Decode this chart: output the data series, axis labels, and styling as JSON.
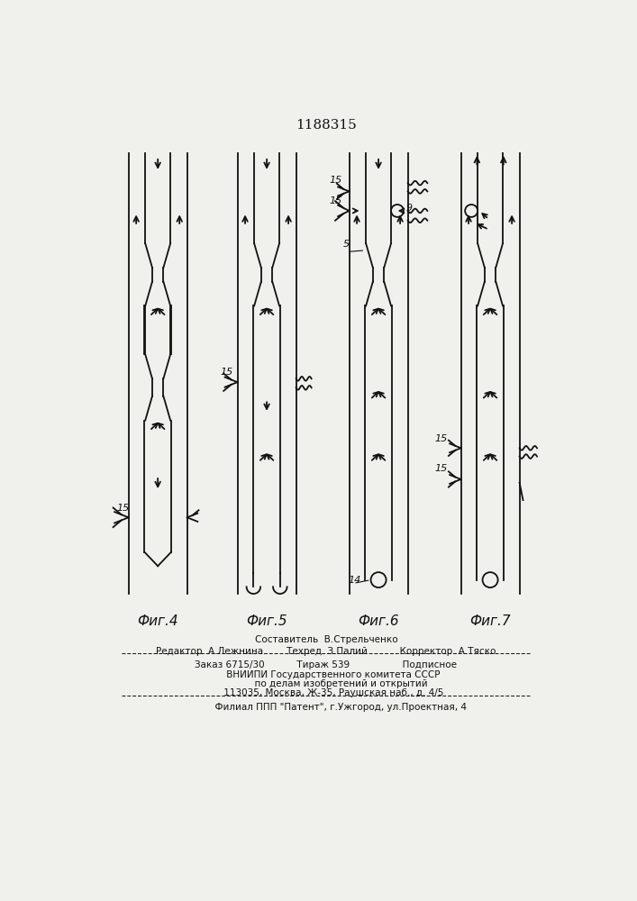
{
  "title": "1188315",
  "title_fontsize": 11,
  "fig_labels": [
    "Фиг.4",
    "Фиг.5",
    "Фиг.6",
    "Фиг.7"
  ],
  "fig_label_fontsize": 11,
  "background_color": "#f0f0ec",
  "line_color": "#111111",
  "line_width": 1.3,
  "footer_lines": [
    "Составитель  В.Стрельченко",
    "Редактор  А.Лежнина        Техред  З.Палий           Корректор  А.Тяско",
    "Заказ 6715/30           Тираж 539                  Подписное",
    "     ВНИИПИ Государственного комитета СССР",
    "          по делам изобретений и открытий",
    "     113035, Москва, Ж-35, Раушская наб., д. 4/5",
    "          Филиал ППП \"Патент\", г.Ужгород, ул.Проектная, 4"
  ]
}
